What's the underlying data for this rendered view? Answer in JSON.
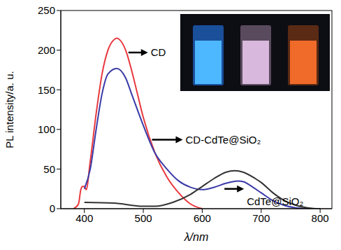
{
  "chart_data": {
    "type": "line",
    "x_label": "λ/nm",
    "y_label": "PL intensity/a. u.",
    "xlim": [
      360,
      820
    ],
    "xticks": [
      400,
      500,
      600,
      700,
      800
    ],
    "ylim": [
      0,
      250
    ],
    "yticks": [
      0,
      50,
      100,
      150,
      200,
      250
    ],
    "grid": false,
    "series": [
      {
        "name": "CD",
        "color": "#e8383d",
        "x": [
          382,
          390,
          394,
          397,
          400,
          403,
          410,
          420,
          430,
          440,
          450,
          455,
          460,
          470,
          480,
          490,
          500,
          520,
          540,
          560,
          580,
          600
        ],
        "values": [
          0,
          6,
          24,
          28,
          28,
          24,
          60,
          120,
          170,
          200,
          213,
          215,
          213,
          200,
          175,
          145,
          115,
          70,
          40,
          20,
          6,
          0
        ]
      },
      {
        "name": "CD-CdTe@SiO₂",
        "color": "#3a3aa8",
        "x": [
          400,
          410,
          420,
          430,
          440,
          455,
          470,
          480,
          500,
          520,
          540,
          560,
          580,
          600,
          620,
          640,
          660,
          670,
          680,
          700,
          720,
          740,
          760,
          780,
          800
        ],
        "values": [
          25,
          50,
          100,
          145,
          170,
          177,
          165,
          145,
          105,
          70,
          50,
          35,
          27,
          24,
          27,
          32,
          35,
          34,
          30,
          20,
          10,
          4,
          1,
          0,
          0
        ]
      },
      {
        "name": "CdTe@SiO₂",
        "color": "#333333",
        "x": [
          400,
          450,
          500,
          520,
          550,
          580,
          600,
          620,
          640,
          655,
          670,
          690,
          700,
          720,
          740,
          760,
          780,
          800
        ],
        "values": [
          8,
          7,
          3,
          3,
          8,
          18,
          28,
          38,
          46,
          48,
          46,
          38,
          33,
          20,
          10,
          4,
          1,
          0
        ]
      }
    ]
  }
}
